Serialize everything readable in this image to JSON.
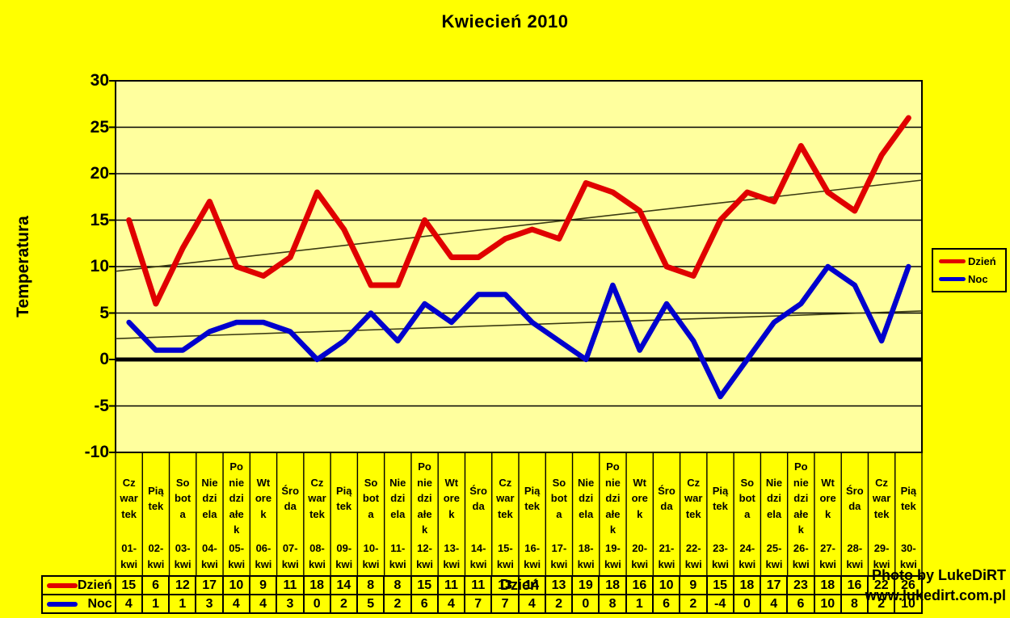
{
  "title": "Kwiecień 2010",
  "watermark": {
    "line1": "Photo by LukeDiRT",
    "line2": "www.lukedirt.com.pl"
  },
  "colors": {
    "page_bg": "#ffff00",
    "plot_bg": "#ffff9e",
    "dzien_line": "#e00000",
    "noc_line": "#0000cd",
    "trendline": "#3a3a12",
    "axis": "#000000"
  },
  "chart_data": {
    "type": "line",
    "title": "Kwiecień 2010",
    "xlabel": "Dzień",
    "ylabel": "Temperatura",
    "ylim": [
      -10,
      30
    ],
    "yticks": [
      30,
      25,
      20,
      15,
      10,
      5,
      0,
      -5,
      -10
    ],
    "grid": true,
    "legend_position": "right",
    "weekdays": [
      "Czwartek",
      "Piątek",
      "Sobota",
      "Niedziela",
      "Poniedziałek",
      "Wtorek",
      "Środa",
      "Czwartek",
      "Piątek",
      "Sobota",
      "Niedziela",
      "Poniedziałek",
      "Wtorek",
      "Środa",
      "Czwartek",
      "Piątek",
      "Sobota",
      "Niedziela",
      "Poniedziałek",
      "Wtorek",
      "Środa",
      "Czwartek",
      "Piątek",
      "Sobota",
      "Niedziela",
      "Poniedziałek",
      "Wtorek",
      "Środa",
      "Czwartek",
      "Piątek"
    ],
    "dates": [
      "01-kwi",
      "02-kwi",
      "03-kwi",
      "04-kwi",
      "05-kwi",
      "06-kwi",
      "07-kwi",
      "08-kwi",
      "09-kwi",
      "10-kwi",
      "11-kwi",
      "12-kwi",
      "13-kwi",
      "14-kwi",
      "15-kwi",
      "16-kwi",
      "17-kwi",
      "18-kwi",
      "19-kwi",
      "20-kwi",
      "21-kwi",
      "22-kwi",
      "23-kwi",
      "24-kwi",
      "25-kwi",
      "26-kwi",
      "27-kwi",
      "28-kwi",
      "29-kwi",
      "30-kwi"
    ],
    "series": [
      {
        "name": "Dzień",
        "color": "#e00000",
        "trendline": true,
        "values": [
          15,
          6,
          12,
          17,
          10,
          9,
          11,
          18,
          14,
          8,
          8,
          15,
          11,
          11,
          13,
          14,
          13,
          19,
          18,
          16,
          10,
          9,
          15,
          18,
          17,
          23,
          18,
          16,
          22,
          26
        ]
      },
      {
        "name": "Noc",
        "color": "#0000cd",
        "trendline": true,
        "values": [
          4,
          1,
          1,
          3,
          4,
          4,
          3,
          0,
          2,
          5,
          2,
          6,
          4,
          7,
          7,
          4,
          2,
          0,
          8,
          1,
          6,
          2,
          -4,
          0,
          4,
          6,
          10,
          8,
          2,
          10
        ]
      }
    ],
    "data_table": true
  }
}
